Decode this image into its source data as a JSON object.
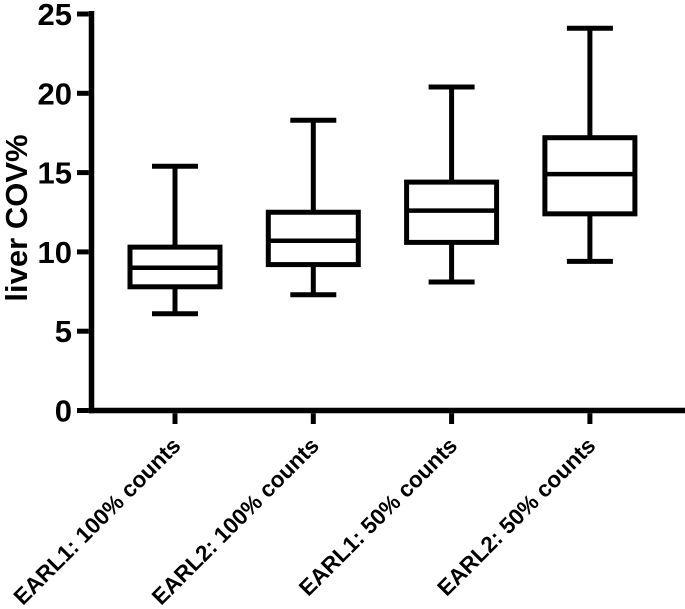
{
  "figure": {
    "background_color": "#ffffff",
    "ink_color": "#000000"
  },
  "chart_data": {
    "type": "boxplot",
    "title": "",
    "xlabel": "",
    "ylabel": "liver COV%",
    "ylim": [
      0,
      25
    ],
    "yticks": [
      0,
      5,
      10,
      15,
      20,
      25
    ],
    "ytick_labels": [
      "0",
      "5",
      "10",
      "15",
      "20",
      "25"
    ],
    "grid": false,
    "legend": "none",
    "categories": [
      "EARL1: 100% counts",
      "EARL2: 100% counts",
      "EARL1: 50% counts",
      "EARL2: 50% counts"
    ],
    "series": [
      {
        "name": "EARL1: 100% counts",
        "min": 6.1,
        "q1": 7.8,
        "median": 9.0,
        "q3": 10.3,
        "max": 15.4
      },
      {
        "name": "EARL2: 100% counts",
        "min": 7.3,
        "q1": 9.2,
        "median": 10.7,
        "q3": 12.5,
        "max": 18.3
      },
      {
        "name": "EARL1: 50% counts",
        "min": 8.1,
        "q1": 10.6,
        "median": 12.6,
        "q3": 14.4,
        "max": 20.4
      },
      {
        "name": "EARL2: 50% counts",
        "min": 9.4,
        "q1": 12.4,
        "median": 14.9,
        "q3": 17.2,
        "max": 24.1
      }
    ]
  }
}
